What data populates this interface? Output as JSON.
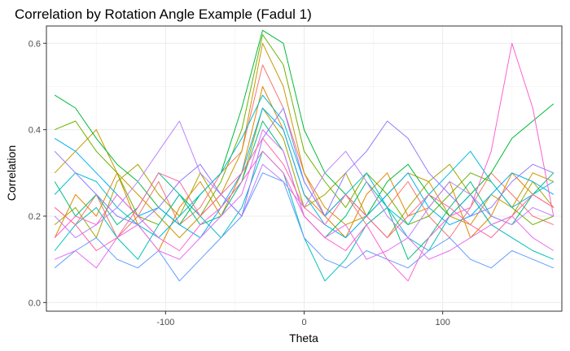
{
  "chart_data": {
    "type": "line",
    "title": "Correlation by Rotation Angle Example (Fadul 1)",
    "xlabel": "Theta",
    "ylabel": "Correlation",
    "xlim": [
      -186,
      186
    ],
    "ylim": [
      -0.02,
      0.64
    ],
    "x_ticks": [
      -100,
      0,
      100
    ],
    "x_tick_labels": [
      "-100",
      "0",
      "100"
    ],
    "y_ticks": [
      0.0,
      0.2,
      0.4,
      0.6
    ],
    "y_tick_labels": [
      "0.0",
      "0.2",
      "0.4",
      "0.6"
    ],
    "grid": true,
    "legend": "none",
    "x": [
      -180,
      -165,
      -150,
      -135,
      -120,
      -105,
      -90,
      -75,
      -60,
      -45,
      -30,
      -15,
      0,
      15,
      30,
      45,
      60,
      75,
      90,
      105,
      120,
      135,
      150,
      165,
      180
    ],
    "series": [
      {
        "color": "#F8766D",
        "values": [
          0.22,
          0.18,
          0.25,
          0.15,
          0.2,
          0.28,
          0.18,
          0.22,
          0.3,
          0.35,
          0.55,
          0.45,
          0.3,
          0.2,
          0.25,
          0.18,
          0.22,
          0.28,
          0.2,
          0.15,
          0.22,
          0.3,
          0.25,
          0.2,
          0.18
        ]
      },
      {
        "color": "#E58700",
        "values": [
          0.15,
          0.25,
          0.2,
          0.3,
          0.18,
          0.12,
          0.22,
          0.28,
          0.2,
          0.3,
          0.5,
          0.4,
          0.25,
          0.2,
          0.15,
          0.25,
          0.3,
          0.2,
          0.22,
          0.28,
          0.15,
          0.2,
          0.3,
          0.25,
          0.22
        ]
      },
      {
        "color": "#C99800",
        "values": [
          0.3,
          0.35,
          0.4,
          0.3,
          0.25,
          0.2,
          0.15,
          0.2,
          0.25,
          0.35,
          0.6,
          0.5,
          0.3,
          0.22,
          0.18,
          0.2,
          0.25,
          0.3,
          0.28,
          0.2,
          0.18,
          0.25,
          0.22,
          0.3,
          0.28
        ]
      },
      {
        "color": "#A3A500",
        "values": [
          0.18,
          0.22,
          0.15,
          0.28,
          0.32,
          0.25,
          0.2,
          0.3,
          0.22,
          0.28,
          0.45,
          0.38,
          0.22,
          0.25,
          0.3,
          0.2,
          0.15,
          0.22,
          0.28,
          0.32,
          0.25,
          0.18,
          0.2,
          0.28,
          0.22
        ]
      },
      {
        "color": "#6BB100",
        "values": [
          0.4,
          0.42,
          0.35,
          0.3,
          0.2,
          0.18,
          0.25,
          0.2,
          0.28,
          0.4,
          0.62,
          0.55,
          0.35,
          0.28,
          0.22,
          0.3,
          0.25,
          0.18,
          0.2,
          0.25,
          0.3,
          0.28,
          0.22,
          0.18,
          0.2
        ]
      },
      {
        "color": "#00BA38",
        "values": [
          0.48,
          0.45,
          0.38,
          0.32,
          0.28,
          0.22,
          0.18,
          0.25,
          0.3,
          0.45,
          0.63,
          0.6,
          0.4,
          0.3,
          0.25,
          0.2,
          0.28,
          0.32,
          0.25,
          0.2,
          0.25,
          0.3,
          0.38,
          0.42,
          0.46
        ]
      },
      {
        "color": "#00BF7D",
        "values": [
          0.28,
          0.2,
          0.25,
          0.18,
          0.22,
          0.3,
          0.25,
          0.18,
          0.2,
          0.28,
          0.42,
          0.35,
          0.2,
          0.15,
          0.2,
          0.28,
          0.22,
          0.1,
          0.15,
          0.22,
          0.28,
          0.2,
          0.18,
          0.25,
          0.3
        ]
      },
      {
        "color": "#00C0B8",
        "values": [
          0.12,
          0.18,
          0.22,
          0.15,
          0.1,
          0.18,
          0.25,
          0.2,
          0.15,
          0.22,
          0.35,
          0.3,
          0.15,
          0.05,
          0.1,
          0.18,
          0.22,
          0.15,
          0.12,
          0.2,
          0.25,
          0.18,
          0.15,
          0.12,
          0.1
        ]
      },
      {
        "color": "#00BCD8",
        "values": [
          0.25,
          0.3,
          0.28,
          0.22,
          0.18,
          0.15,
          0.2,
          0.25,
          0.3,
          0.38,
          0.48,
          0.42,
          0.28,
          0.2,
          0.25,
          0.3,
          0.22,
          0.18,
          0.25,
          0.3,
          0.35,
          0.28,
          0.22,
          0.25,
          0.28
        ]
      },
      {
        "color": "#00B0F6",
        "values": [
          0.38,
          0.35,
          0.3,
          0.25,
          0.2,
          0.22,
          0.18,
          0.15,
          0.22,
          0.3,
          0.45,
          0.4,
          0.25,
          0.18,
          0.15,
          0.2,
          0.25,
          0.3,
          0.22,
          0.18,
          0.2,
          0.25,
          0.3,
          0.28,
          0.25
        ]
      },
      {
        "color": "#619CFF",
        "values": [
          0.08,
          0.12,
          0.15,
          0.1,
          0.08,
          0.12,
          0.05,
          0.1,
          0.15,
          0.2,
          0.3,
          0.28,
          0.15,
          0.1,
          0.08,
          0.12,
          0.1,
          0.08,
          0.12,
          0.15,
          0.1,
          0.08,
          0.12,
          0.1,
          0.08
        ]
      },
      {
        "color": "#B983FF",
        "values": [
          0.2,
          0.15,
          0.18,
          0.22,
          0.28,
          0.35,
          0.42,
          0.3,
          0.25,
          0.2,
          0.32,
          0.28,
          0.22,
          0.3,
          0.35,
          0.28,
          0.2,
          0.15,
          0.22,
          0.28,
          0.25,
          0.2,
          0.18,
          0.22,
          0.2
        ]
      },
      {
        "color": "#E76BF3",
        "values": [
          0.1,
          0.12,
          0.08,
          0.15,
          0.18,
          0.12,
          0.1,
          0.15,
          0.2,
          0.25,
          0.4,
          0.35,
          0.2,
          0.15,
          0.18,
          0.1,
          0.12,
          0.15,
          0.1,
          0.12,
          0.15,
          0.18,
          0.2,
          0.15,
          0.12
        ]
      },
      {
        "color": "#FD61D1",
        "values": [
          0.15,
          0.2,
          0.18,
          0.25,
          0.2,
          0.15,
          0.12,
          0.18,
          0.22,
          0.28,
          0.35,
          0.3,
          0.2,
          0.15,
          0.12,
          0.18,
          0.1,
          0.05,
          0.15,
          0.2,
          0.22,
          0.35,
          0.6,
          0.45,
          0.2
        ]
      },
      {
        "color": "#FF67A4",
        "values": [
          0.22,
          0.18,
          0.12,
          0.15,
          0.22,
          0.3,
          0.28,
          0.2,
          0.25,
          0.3,
          0.38,
          0.32,
          0.22,
          0.18,
          0.25,
          0.2,
          0.15,
          0.2,
          0.25,
          0.22,
          0.18,
          0.15,
          0.2,
          0.25,
          0.22
        ]
      },
      {
        "color": "#8F7CFF",
        "values": [
          0.35,
          0.3,
          0.25,
          0.2,
          0.18,
          0.22,
          0.28,
          0.32,
          0.25,
          0.2,
          0.38,
          0.45,
          0.28,
          0.2,
          0.3,
          0.35,
          0.42,
          0.38,
          0.3,
          0.25,
          0.2,
          0.22,
          0.28,
          0.32,
          0.3
        ]
      }
    ]
  }
}
